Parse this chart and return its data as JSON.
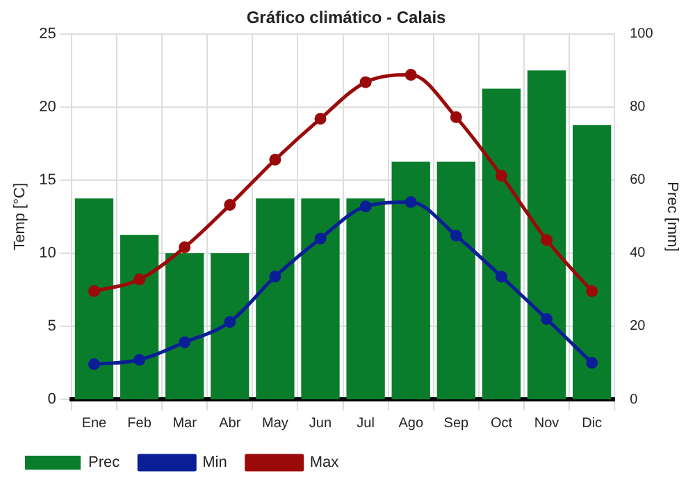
{
  "chart_data": {
    "type": "bar",
    "title": "Gráfico climático - Calais",
    "ylabel": "Temp [°C]",
    "y2label": "Prec [mm]",
    "categories": [
      "Ene",
      "Feb",
      "Mar",
      "Abr",
      "May",
      "Jun",
      "Jul",
      "Ago",
      "Sep",
      "Oct",
      "Nov",
      "Dic"
    ],
    "series": [
      {
        "name": "Prec",
        "axis": "y2",
        "color": "#0a7d2c",
        "values": [
          55,
          45,
          40,
          40,
          55,
          55,
          55,
          65,
          65,
          85,
          90,
          75
        ]
      },
      {
        "name": "Min",
        "type": "line",
        "color": "#0a1f96",
        "values": [
          2.4,
          2.7,
          3.9,
          5.3,
          8.4,
          11.0,
          13.2,
          13.5,
          11.2,
          8.4,
          5.5,
          2.5
        ]
      },
      {
        "name": "Max",
        "type": "line",
        "color": "#9b0a0a",
        "values": [
          7.4,
          8.2,
          10.4,
          13.3,
          16.4,
          19.2,
          21.7,
          22.2,
          19.3,
          15.3,
          10.9,
          7.4
        ]
      }
    ],
    "ylim": [
      0,
      25
    ],
    "yticks": [
      0,
      5,
      10,
      15,
      20,
      25
    ],
    "y2lim": [
      0,
      100
    ],
    "y2ticks": [
      0,
      20,
      40,
      60,
      80,
      100
    ],
    "grid": true,
    "legend": "bottom left",
    "marker": "circle",
    "line_style": "solid"
  }
}
